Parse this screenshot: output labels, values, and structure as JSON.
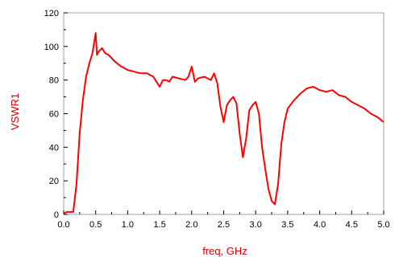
{
  "chart_data": {
    "type": "line",
    "title": "",
    "xlabel": "freq, GHz",
    "ylabel": "VSWR1",
    "xlim": [
      0.0,
      5.0
    ],
    "ylim": [
      0,
      120
    ],
    "x_ticks": [
      "0.0",
      "0.5",
      "1.0",
      "1.5",
      "2.0",
      "2.5",
      "3.0",
      "3.5",
      "4.0",
      "4.5",
      "5.0"
    ],
    "y_ticks": [
      "0",
      "20",
      "40",
      "60",
      "80",
      "100",
      "120"
    ],
    "grid": false,
    "legend": "none",
    "series": [
      {
        "color": "#ff0000",
        "x": [
          0.0,
          0.05,
          0.1,
          0.15,
          0.2,
          0.25,
          0.3,
          0.35,
          0.4,
          0.45,
          0.5,
          0.52,
          0.55,
          0.6,
          0.65,
          0.7,
          0.75,
          0.8,
          0.9,
          1.0,
          1.1,
          1.2,
          1.3,
          1.4,
          1.45,
          1.5,
          1.55,
          1.6,
          1.65,
          1.7,
          1.8,
          1.9,
          1.95,
          2.0,
          2.05,
          2.1,
          2.2,
          2.3,
          2.35,
          2.4,
          2.45,
          2.5,
          2.55,
          2.6,
          2.65,
          2.7,
          2.75,
          2.8,
          2.85,
          2.9,
          2.95,
          3.0,
          3.05,
          3.1,
          3.15,
          3.2,
          3.25,
          3.3,
          3.35,
          3.4,
          3.45,
          3.5,
          3.6,
          3.7,
          3.8,
          3.9,
          4.0,
          4.1,
          4.2,
          4.3,
          4.4,
          4.5,
          4.6,
          4.7,
          4.8,
          4.9,
          5.0
        ],
        "y": [
          0.5,
          1.5,
          1.5,
          1.5,
          18,
          48,
          68,
          82,
          90,
          96,
          108,
          95,
          97,
          99,
          96,
          95,
          93,
          91,
          88,
          86,
          85,
          84,
          84,
          82,
          79,
          76,
          80,
          80,
          79,
          82,
          81,
          80,
          82,
          88,
          79,
          81,
          82,
          80,
          84,
          78,
          64,
          55,
          65,
          68,
          70,
          66,
          48,
          34,
          45,
          62,
          65,
          67,
          60,
          40,
          27,
          15,
          8,
          6,
          18,
          42,
          55,
          63,
          68,
          72,
          75,
          76,
          74,
          73,
          74,
          71,
          70,
          67,
          65,
          63,
          60,
          58,
          55
        ]
      }
    ]
  }
}
